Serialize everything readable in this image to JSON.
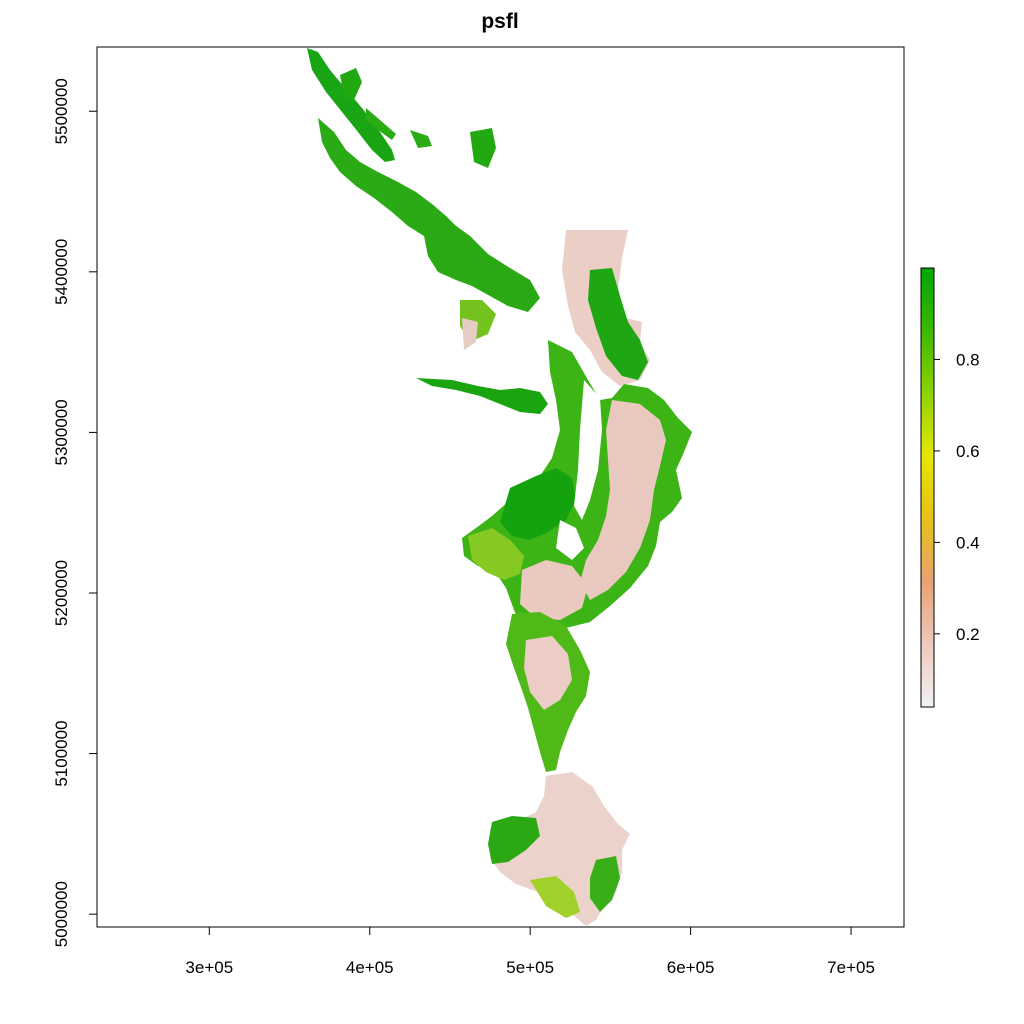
{
  "map": {
    "title": "psfl",
    "x_ticks": [
      {
        "value": 300000,
        "label": "3e+05"
      },
      {
        "value": 400000,
        "label": "4e+05"
      },
      {
        "value": 500000,
        "label": "5e+05"
      },
      {
        "value": 600000,
        "label": "6e+05"
      },
      {
        "value": 700000,
        "label": "7e+05"
      }
    ],
    "y_ticks": [
      {
        "value": 5000000,
        "label": "5000000"
      },
      {
        "value": 5100000,
        "label": "5100000"
      },
      {
        "value": 5200000,
        "label": "5200000"
      },
      {
        "value": 5300000,
        "label": "5300000"
      },
      {
        "value": 5400000,
        "label": "5400000"
      },
      {
        "value": 5500000,
        "label": "5500000"
      }
    ],
    "xlim": [
      230000,
      733000
    ],
    "ylim": [
      4992000,
      5540000
    ],
    "legend": {
      "placement": "right",
      "range": [
        0.04,
        1.0
      ],
      "ticks": [
        {
          "value": 0.2,
          "label": "0.2"
        },
        {
          "value": 0.4,
          "label": "0.4"
        },
        {
          "value": 0.6,
          "label": "0.6"
        },
        {
          "value": 0.8,
          "label": "0.8"
        }
      ],
      "colors": [
        "#f2f2f2",
        "#eec9be",
        "#e8a273",
        "#e6c217",
        "#e6e600",
        "#8ed300",
        "#3cb800",
        "#00a600"
      ]
    },
    "colors": {
      "high": "#11a30f",
      "mid": "#78c420",
      "low": "#e9c9c0",
      "very_low": "#f1e2de"
    }
  }
}
